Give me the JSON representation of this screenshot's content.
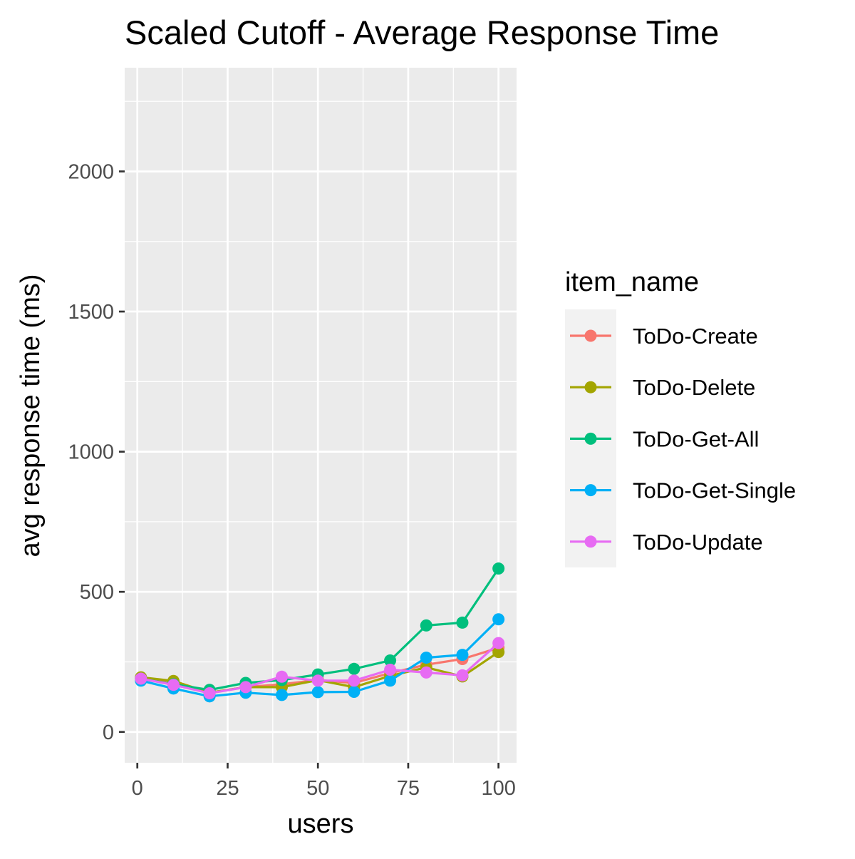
{
  "chart_data": {
    "type": "line",
    "title": "Scaled Cutoff - Average Response Time",
    "xlabel": "users",
    "ylabel": "avg response time (ms)",
    "xlim": [
      -3.5,
      105
    ],
    "ylim": [
      -110,
      2370
    ],
    "x_ticks": [
      0,
      25,
      50,
      75,
      100
    ],
    "y_ticks": [
      0,
      500,
      1000,
      1500,
      2000
    ],
    "grid": true,
    "legend_title": "item_name",
    "legend_position": "right",
    "x": [
      1,
      10,
      20,
      30,
      40,
      50,
      60,
      70,
      80,
      90,
      100
    ],
    "series": [
      {
        "name": "ToDo-Create",
        "color": "#F8766D",
        "values": [
          190,
          180,
          140,
          160,
          170,
          185,
          175,
          210,
          240,
          260,
          300
        ]
      },
      {
        "name": "ToDo-Delete",
        "color": "#A3A500",
        "values": [
          195,
          182,
          140,
          160,
          160,
          185,
          160,
          200,
          230,
          198,
          285
        ]
      },
      {
        "name": "ToDo-Get-All",
        "color": "#00BF7D",
        "values": [
          190,
          170,
          150,
          175,
          185,
          205,
          225,
          255,
          380,
          390,
          583
        ]
      },
      {
        "name": "ToDo-Get-Single",
        "color": "#00B0F6",
        "values": [
          183,
          155,
          127,
          140,
          132,
          142,
          143,
          183,
          265,
          275,
          402
        ]
      },
      {
        "name": "ToDo-Update",
        "color": "#E76BF3",
        "values": [
          190,
          168,
          138,
          160,
          197,
          183,
          183,
          222,
          212,
          202,
          317
        ]
      }
    ]
  }
}
